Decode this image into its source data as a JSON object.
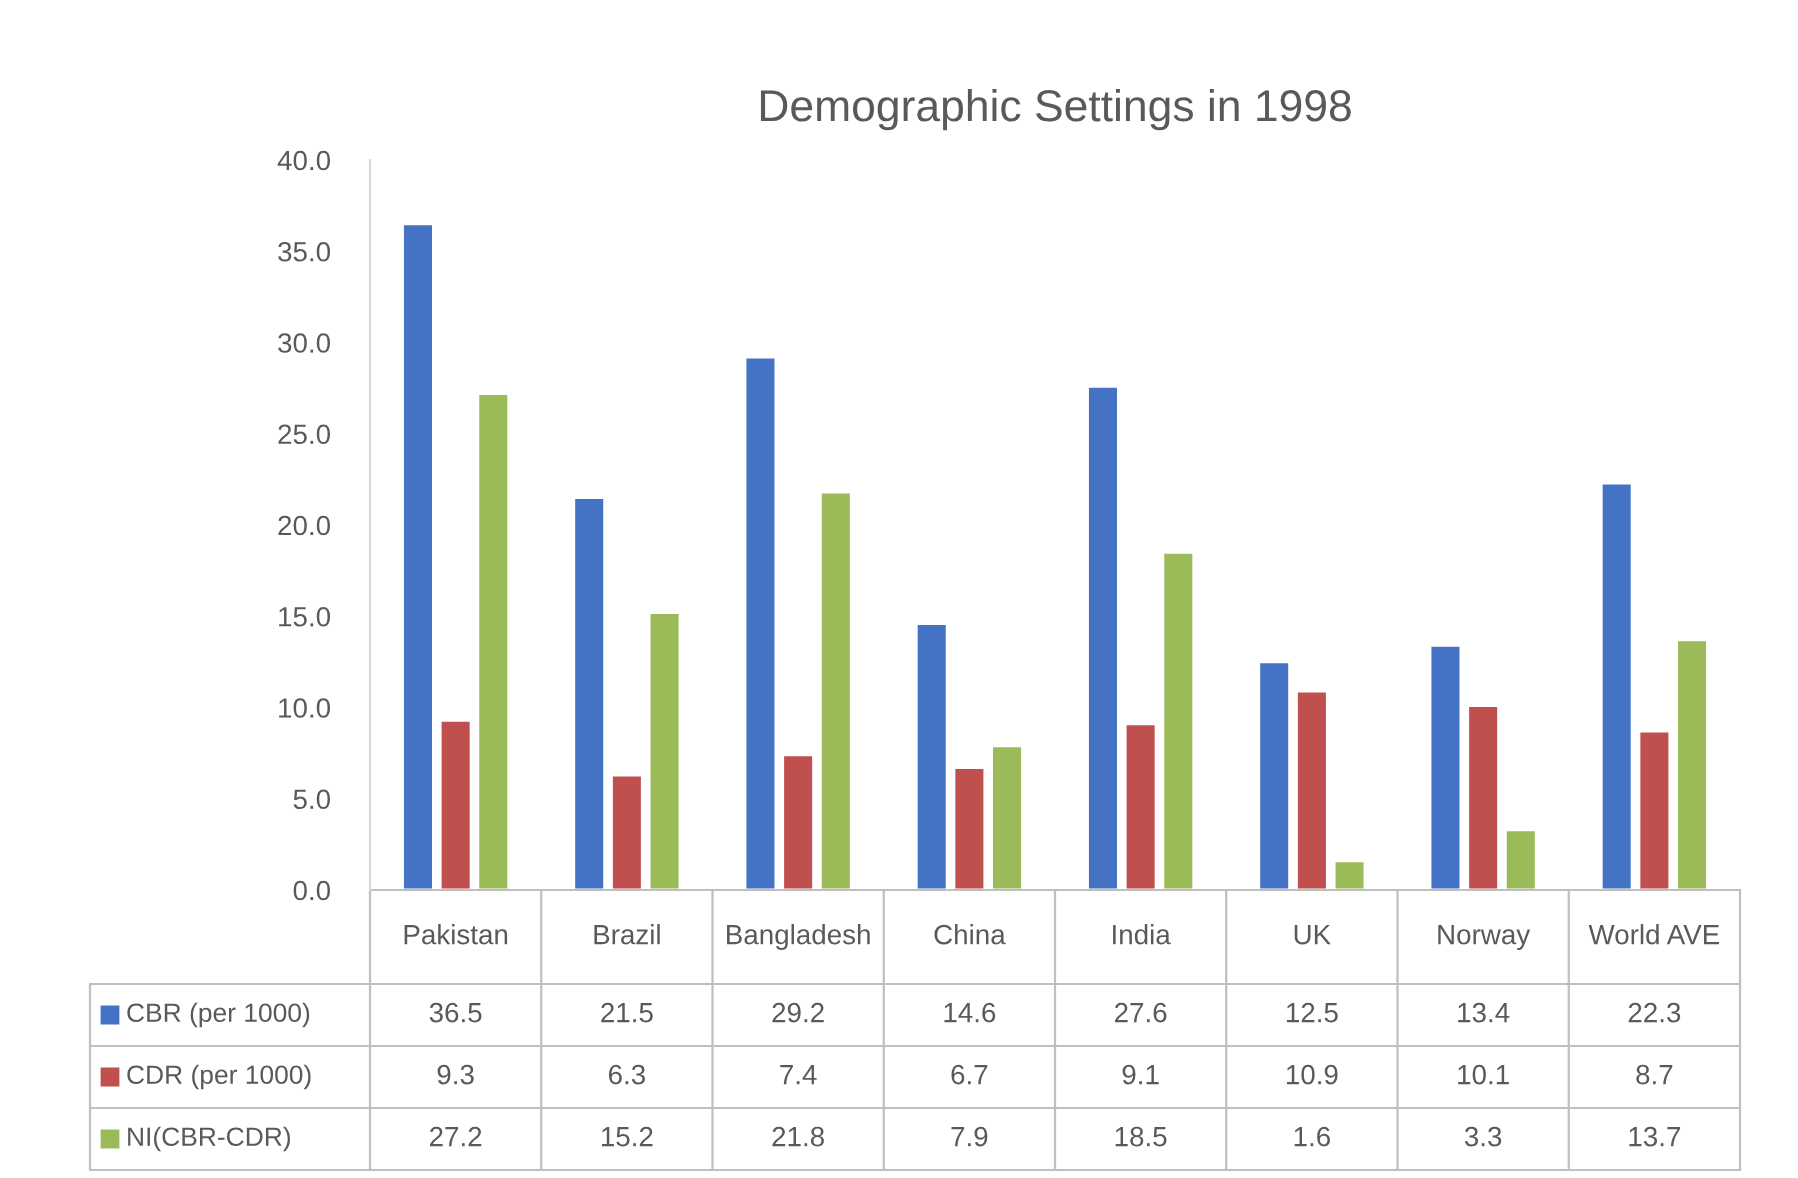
{
  "chart_data": {
    "type": "bar",
    "title": "Demographic Settings in 1998",
    "categories": [
      "Pakistan",
      "Brazil",
      "Bangladesh",
      "China",
      "India",
      "UK",
      "Norway",
      "World AVE"
    ],
    "series": [
      {
        "name": "CBR (per 1000)",
        "color": "#4472c4",
        "values": [
          36.5,
          21.5,
          29.2,
          14.6,
          27.6,
          12.5,
          13.4,
          22.3
        ]
      },
      {
        "name": "CDR (per 1000)",
        "color": "#c0504d",
        "values": [
          9.3,
          6.3,
          7.4,
          6.7,
          9.1,
          10.9,
          10.1,
          8.7
        ]
      },
      {
        "name": "NI(CBR-CDR)",
        "color": "#9bbb59",
        "values": [
          27.2,
          15.2,
          21.8,
          7.9,
          18.5,
          1.6,
          3.3,
          13.7
        ]
      }
    ],
    "ylim": [
      0,
      40
    ],
    "yticks": [
      {
        "value": 0,
        "label": "0.0"
      },
      {
        "value": 5,
        "label": "5.0"
      },
      {
        "value": 10,
        "label": "10.0"
      },
      {
        "value": 15,
        "label": "15.0"
      },
      {
        "value": 20,
        "label": "20.0"
      },
      {
        "value": 25,
        "label": "25.0"
      },
      {
        "value": 30,
        "label": "30.0"
      },
      {
        "value": 35,
        "label": "35.0"
      },
      {
        "value": 40,
        "label": "40.0"
      }
    ],
    "grid": false,
    "legend": "bottom",
    "data_labels": true
  }
}
